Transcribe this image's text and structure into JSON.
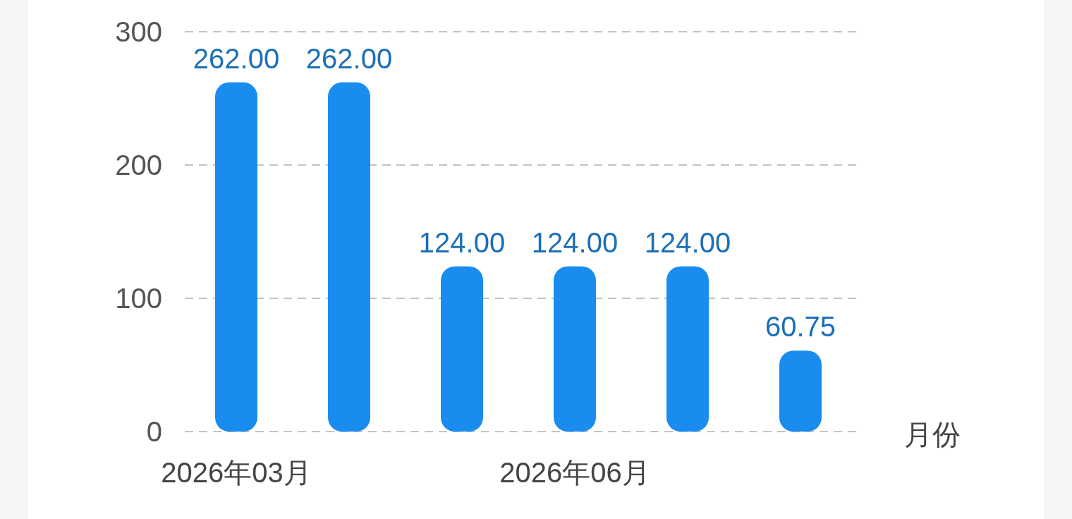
{
  "chart_data": {
    "type": "bar",
    "categories": [
      "2026年03月",
      null,
      null,
      "2026年06月",
      null,
      null
    ],
    "values": [
      262,
      262,
      124,
      124,
      124,
      60.75
    ],
    "value_labels": [
      "262.00",
      "262.00",
      "124.00",
      "124.00",
      "124.00",
      "60.75"
    ],
    "color": "#1a8cf0",
    "xlabel": "月份",
    "ylim": [
      0,
      300
    ],
    "yticks": [
      0,
      100,
      200,
      300
    ],
    "grid": "y"
  }
}
